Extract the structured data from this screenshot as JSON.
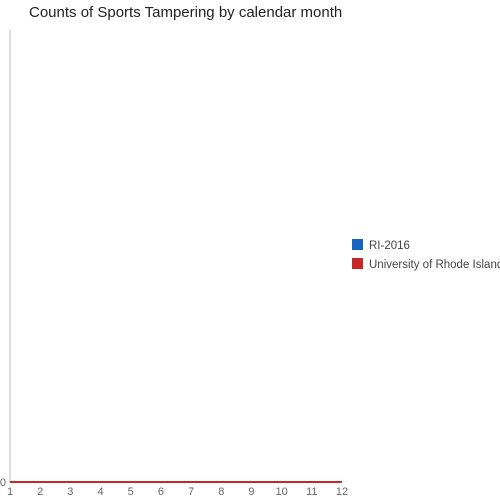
{
  "chart_data": {
    "type": "line",
    "title": "Counts of Sports Tampering by calendar month",
    "xlabel": "",
    "ylabel": "",
    "x": [
      1,
      2,
      3,
      4,
      5,
      6,
      7,
      8,
      9,
      10,
      11,
      12
    ],
    "x_ticks": [
      "1",
      "2",
      "3",
      "4",
      "5",
      "6",
      "7",
      "8",
      "9",
      "10",
      "11",
      "12"
    ],
    "y_ticks": [
      "0"
    ],
    "ylim": [
      0,
      1
    ],
    "grid": false,
    "legend_position": "right",
    "series": [
      {
        "name": "RI-2016",
        "color": "#1565c0",
        "values": [
          0,
          0,
          0,
          0,
          0,
          0,
          0,
          0,
          0,
          0,
          0,
          0
        ]
      },
      {
        "name": "University of Rhode Island",
        "color": "#c62828",
        "values": [
          0,
          0,
          0,
          0,
          0,
          0,
          0,
          0,
          0,
          0,
          0,
          0
        ]
      }
    ]
  }
}
